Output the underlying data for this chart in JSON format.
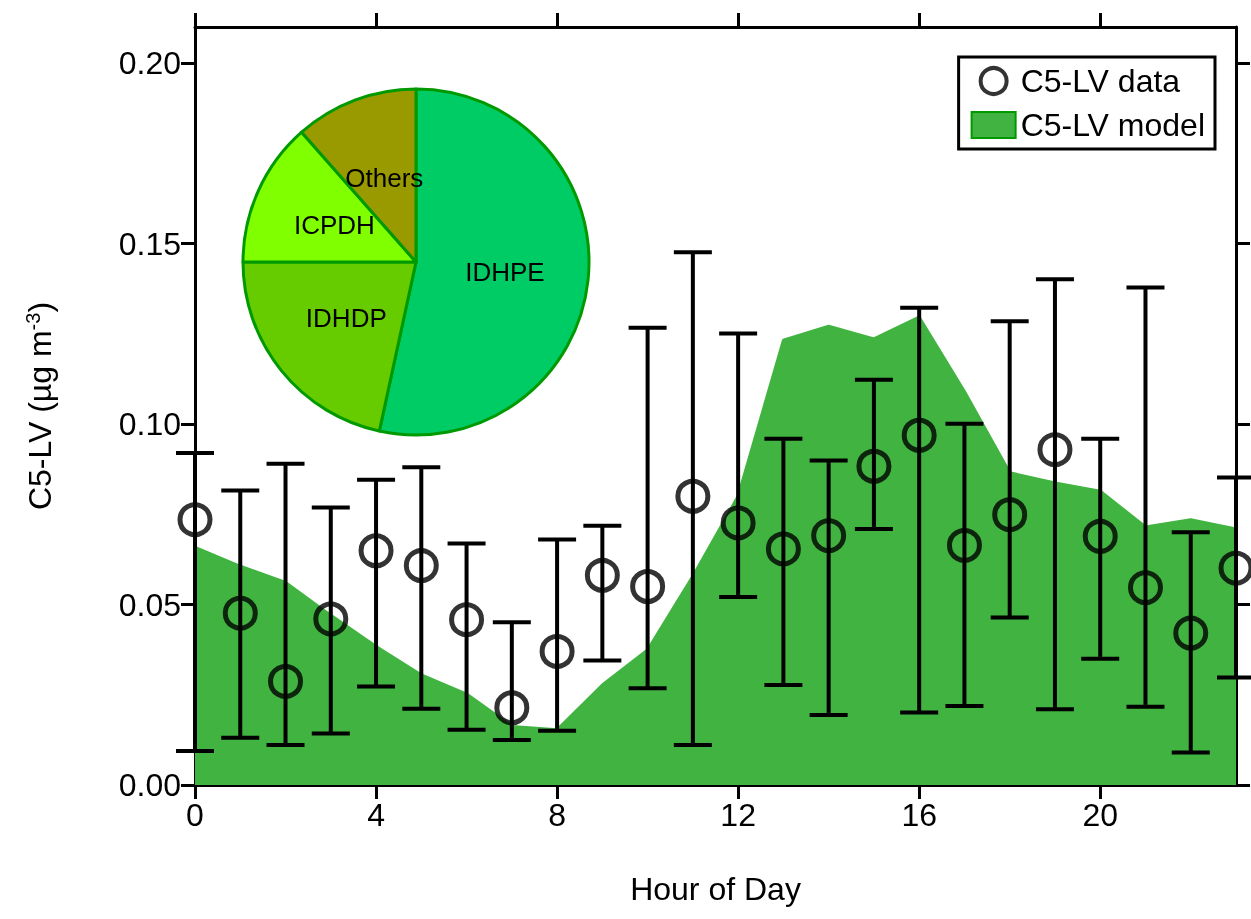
{
  "chart_data": [
    {
      "type": "line",
      "xlabel": "Hour of Day",
      "ylabel": "C5-LV (µg m$^{-3}$)",
      "x": [
        0,
        1,
        2,
        3,
        4,
        5,
        6,
        7,
        8,
        9,
        10,
        11,
        12,
        13,
        14,
        15,
        16,
        17,
        18,
        19,
        20,
        21,
        22,
        23
      ],
      "xlim": [
        0,
        23
      ],
      "xticks": [
        0,
        4,
        8,
        12,
        16,
        20
      ],
      "ylim": [
        0,
        0.21
      ],
      "yticks": [
        {
          "value": 0,
          "label": "0.00"
        },
        {
          "value": 0.05,
          "label": "0.05"
        },
        {
          "value": 0.1,
          "label": "0.10"
        },
        {
          "value": 0.15,
          "label": "0.15"
        },
        {
          "value": 0.2,
          "label": "0.20"
        }
      ],
      "grid": false,
      "legend": "top right",
      "series": [
        {
          "name": "C5-LV data",
          "type": "scatter",
          "color": "#000000",
          "marker": "circle",
          "values": [
            0.0735,
            0.0476,
            0.0287,
            0.046,
            0.0649,
            0.0608,
            0.0458,
            0.0214,
            0.037,
            0.0581,
            0.055,
            0.08,
            0.0726,
            0.0654,
            0.0691,
            0.0883,
            0.0969,
            0.0664,
            0.0749,
            0.0929,
            0.0689,
            0.0547,
            0.0421,
            0.0601
          ],
          "errors": [
            [
              0.0094,
              0.092
            ],
            [
              0.0131,
              0.0816
            ],
            [
              0.0111,
              0.089
            ],
            [
              0.0143,
              0.0769
            ],
            [
              0.0273,
              0.0846
            ],
            [
              0.0211,
              0.088
            ],
            [
              0.0153,
              0.0669
            ],
            [
              0.0125,
              0.0451
            ],
            [
              0.015,
              0.068
            ],
            [
              0.0345,
              0.0718
            ],
            [
              0.0268,
              0.1267
            ],
            [
              0.0111,
              0.1476
            ],
            [
              0.0521,
              0.1251
            ],
            [
              0.0277,
              0.0959
            ],
            [
              0.0194,
              0.0899
            ],
            [
              0.0709,
              0.1123
            ],
            [
              0.0201,
              0.1322
            ],
            [
              0.0219,
              0.1001
            ],
            [
              0.0464,
              0.1285
            ],
            [
              0.021,
              0.1401
            ],
            [
              0.035,
              0.0959
            ],
            [
              0.0217,
              0.1378
            ],
            [
              0.009,
              0.07
            ],
            [
              0.0298,
              0.0852
            ]
          ]
        },
        {
          "name": "C5-LV model",
          "type": "area",
          "color": "#41b341",
          "values": [
            0.0658,
            0.0606,
            0.0561,
            0.047,
            0.0384,
            0.0305,
            0.0252,
            0.0162,
            0.0153,
            0.0277,
            0.0374,
            0.0578,
            0.08,
            0.1232,
            0.1271,
            0.1236,
            0.1296,
            0.109,
            0.0865,
            0.0837,
            0.0814,
            0.0715,
            0.0735,
            0.0709
          ]
        }
      ]
    },
    {
      "type": "pie",
      "categories": [
        "IDHPE",
        "IDHDP",
        "ICPDH",
        "Others"
      ],
      "values": [
        53.4,
        21.6,
        13.5,
        11.5
      ],
      "colors": [
        "#00cc66",
        "#66cc00",
        "#80ff00",
        "#999900"
      ]
    }
  ]
}
